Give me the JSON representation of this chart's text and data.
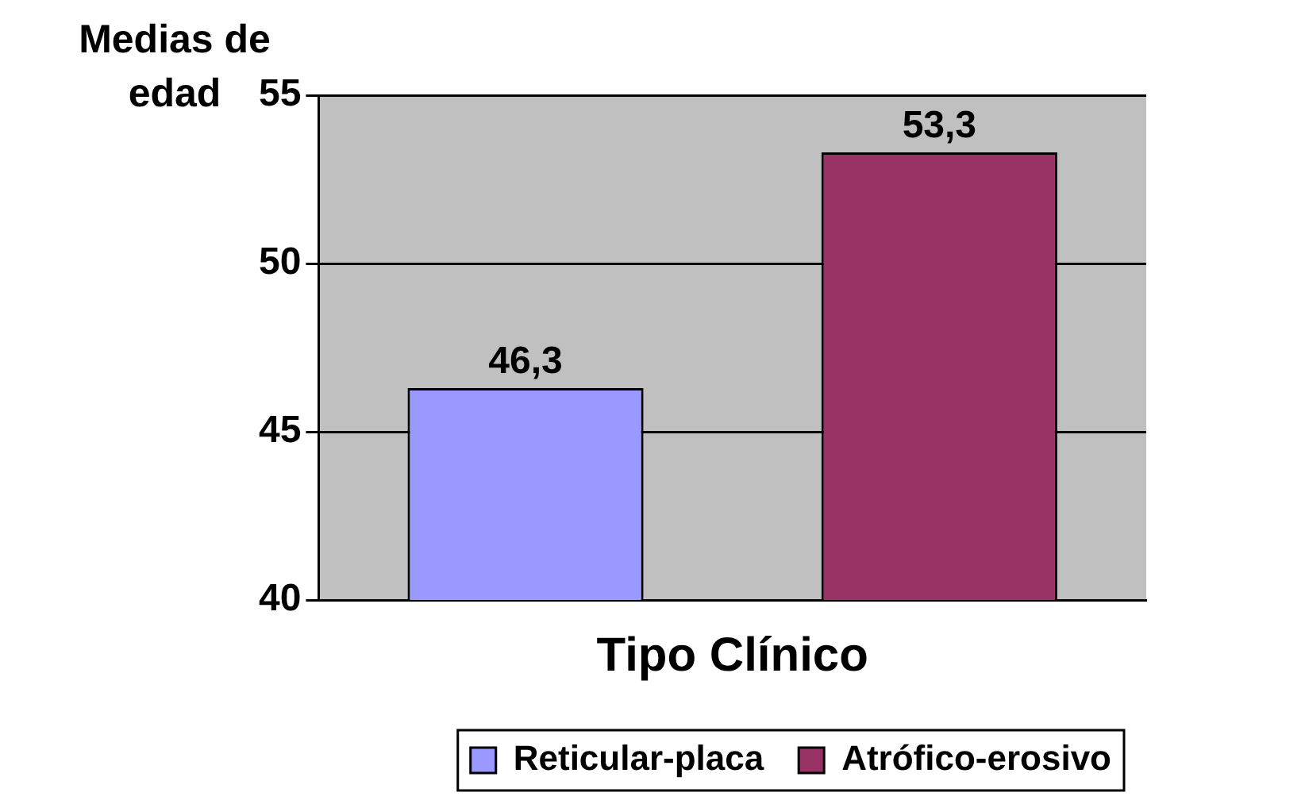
{
  "chart_data": {
    "type": "bar",
    "xlabel": "Tipo Clínico",
    "ylabel": "Medias de edad",
    "categories": [
      null
    ],
    "series": [
      {
        "name": "Reticular-placa",
        "color": "#9999ff",
        "values": [
          46.3
        ],
        "value_labels": [
          "46,3"
        ]
      },
      {
        "name": "Atrófico-erosivo",
        "color": "#993366",
        "values": [
          53.3
        ],
        "value_labels": [
          "53,3"
        ]
      }
    ],
    "ylim": [
      40,
      55
    ],
    "yticks": [
      40,
      45,
      50,
      55
    ],
    "grid": "y",
    "legend": "bottom right"
  }
}
